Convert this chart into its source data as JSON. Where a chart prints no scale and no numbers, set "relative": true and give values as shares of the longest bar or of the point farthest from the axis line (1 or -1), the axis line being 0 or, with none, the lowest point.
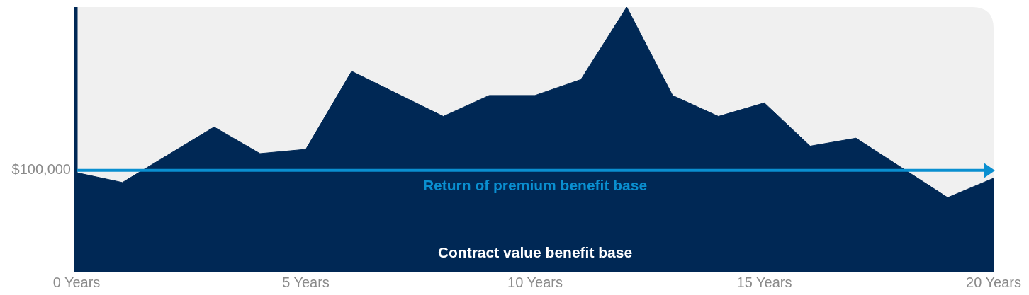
{
  "chart_data": {
    "type": "area",
    "relative": true,
    "x": [
      0,
      1,
      3,
      4,
      5,
      6,
      8,
      9,
      10,
      11,
      12,
      13,
      14,
      15,
      16,
      17,
      19,
      20
    ],
    "series": [
      {
        "color": "#002855",
        "values": [
          0.376,
          0.339,
          0.548,
          0.448,
          0.464,
          0.758,
          0.588,
          0.667,
          0.667,
          0.727,
          1,
          0.667,
          0.588,
          0.639,
          0.476,
          0.506,
          0.282,
          0.355
        ]
      }
    ],
    "xlim": [
      0,
      20
    ],
    "xticks": [
      {
        "value": 0,
        "label": "0 Years"
      },
      {
        "value": 5,
        "label": "5 Years"
      },
      {
        "value": 10,
        "label": "10 Years"
      },
      {
        "value": 15,
        "label": "15 Years"
      },
      {
        "value": 20,
        "label": "20 Years"
      }
    ],
    "ref_lines": [
      {
        "axis": "y",
        "value": 0.385,
        "label": "Return of premium benefit base",
        "color": "#0a8fd0"
      }
    ],
    "annotations": [
      "$100,000",
      "Contract value benefit base"
    ],
    "legend": false,
    "grid": false
  }
}
